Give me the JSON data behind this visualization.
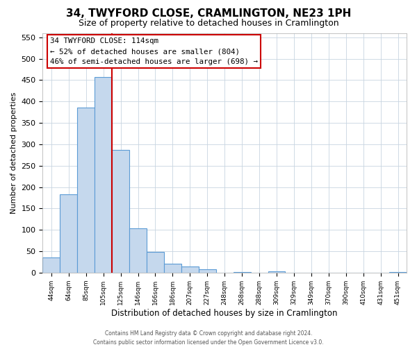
{
  "title": "34, TWYFORD CLOSE, CRAMLINGTON, NE23 1PH",
  "subtitle": "Size of property relative to detached houses in Cramlington",
  "xlabel": "Distribution of detached houses by size in Cramlington",
  "ylabel": "Number of detached properties",
  "bin_labels": [
    "44sqm",
    "64sqm",
    "85sqm",
    "105sqm",
    "125sqm",
    "146sqm",
    "166sqm",
    "186sqm",
    "207sqm",
    "227sqm",
    "248sqm",
    "268sqm",
    "288sqm",
    "309sqm",
    "329sqm",
    "349sqm",
    "370sqm",
    "390sqm",
    "410sqm",
    "431sqm",
    "451sqm"
  ],
  "bar_heights": [
    35,
    183,
    385,
    457,
    286,
    104,
    48,
    21,
    15,
    8,
    0,
    2,
    0,
    3,
    0,
    0,
    0,
    0,
    0,
    0,
    2
  ],
  "bar_color": "#c5d8ed",
  "bar_edge_color": "#5b9bd5",
  "vline_pos": 4.0,
  "vline_color": "#cc0000",
  "ylim": [
    0,
    560
  ],
  "yticks": [
    0,
    50,
    100,
    150,
    200,
    250,
    300,
    350,
    400,
    450,
    500,
    550
  ],
  "annotation_title": "34 TWYFORD CLOSE: 114sqm",
  "annotation_line1": "← 52% of detached houses are smaller (804)",
  "annotation_line2": "46% of semi-detached houses are larger (698) →",
  "annotation_box_color": "#ffffff",
  "annotation_box_edge": "#cc0000",
  "footer_line1": "Contains HM Land Registry data © Crown copyright and database right 2024.",
  "footer_line2": "Contains public sector information licensed under the Open Government Licence v3.0.",
  "background_color": "#ffffff",
  "grid_color": "#c8d4e0"
}
